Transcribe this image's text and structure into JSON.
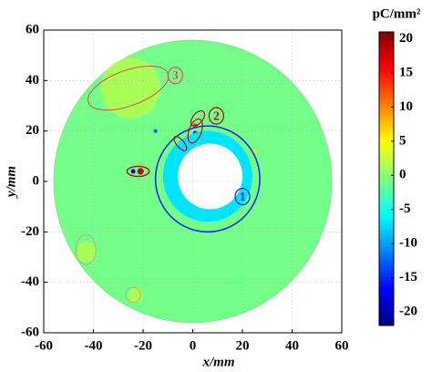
{
  "chart_data": {
    "type": "heatmap",
    "xlabel": "x/mm",
    "ylabel": "y/mm",
    "colorbar_label": "pC/mm²",
    "xlim": [
      -60,
      60
    ],
    "xticks": [
      -60,
      -40,
      -20,
      0,
      20,
      40,
      60
    ],
    "ylim": [
      -60,
      60
    ],
    "yticks": [
      -60,
      -40,
      -20,
      0,
      20,
      40,
      60
    ],
    "clim": [
      -22,
      21
    ],
    "cticks": [
      -20,
      -15,
      -10,
      -5,
      0,
      5,
      10,
      15,
      20
    ],
    "colormap": "jet",
    "grid": true,
    "disk": {
      "x": 0,
      "y": 0,
      "r": 56,
      "value": -1
    },
    "ring": {
      "x": 6,
      "y": 2,
      "r": 18,
      "value": -7
    },
    "hole": {
      "x": 7,
      "y": 2,
      "r": 13
    },
    "spots": [
      {
        "x": -25,
        "y": 37,
        "r": 12,
        "value": 3
      },
      {
        "x": -43,
        "y": -28,
        "r": 4,
        "value": 3
      },
      {
        "x": -23,
        "y": -45,
        "r": 3,
        "value": 3
      },
      {
        "x": -21,
        "y": 4,
        "r": 1.3,
        "value": 18
      },
      {
        "x": -24,
        "y": 4,
        "r": 0.9,
        "value": -18
      },
      {
        "x": 1,
        "y": 19,
        "r": 1,
        "value": -16
      },
      {
        "x": 1,
        "y": 22,
        "r": 1,
        "value": 13
      },
      {
        "x": -6,
        "y": 14,
        "r": 0.9,
        "value": 10
      },
      {
        "x": -4,
        "y": 16,
        "r": 0.8,
        "value": -12
      },
      {
        "x": -15,
        "y": 20,
        "r": 0.8,
        "value": -12
      },
      {
        "x": 25,
        "y": 12,
        "r": 0.8,
        "value": 6
      }
    ],
    "annotations": [
      "1",
      "2",
      "3"
    ]
  }
}
